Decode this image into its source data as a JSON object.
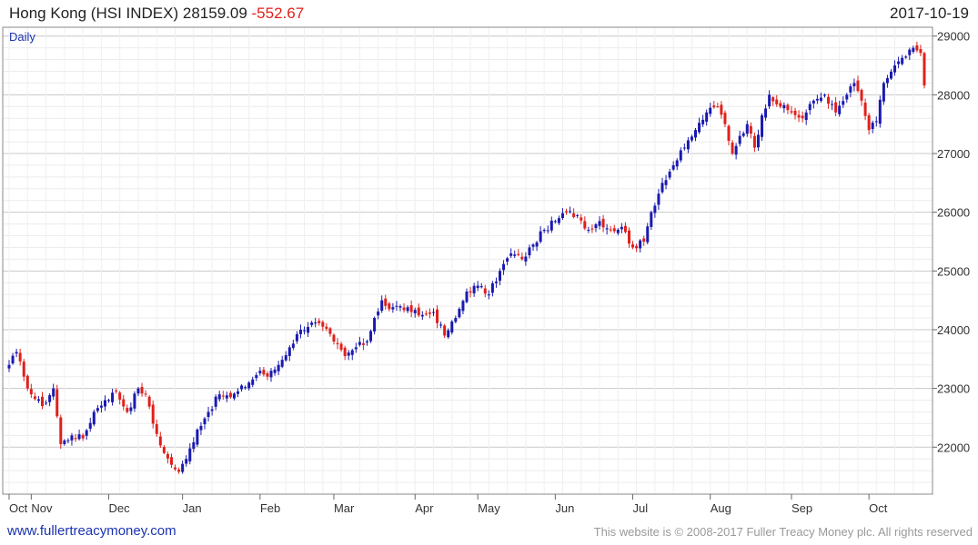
{
  "header": {
    "name": "Hong Kong (HSI INDEX)",
    "last": "28159.09",
    "change": "-552.67",
    "date": "2017-10-19"
  },
  "footer": {
    "site": "www.fullertreacymoney.com",
    "copyright": "This website is © 2008-2017 Fuller Treacy Money plc. All rights reserved"
  },
  "chart_data": {
    "type": "candlestick",
    "period": "Daily",
    "ylim": [
      21200,
      29150
    ],
    "y_ticks": [
      22000,
      23000,
      24000,
      25000,
      26000,
      27000,
      28000,
      29000
    ],
    "grid": true,
    "colors": {
      "up": "#1a1ab0",
      "down": "#e0201b"
    },
    "x_ticks": [
      {
        "label": "Oct",
        "index": 0
      },
      {
        "label": "Nov",
        "index": 6
      },
      {
        "label": "Dec",
        "index": 27
      },
      {
        "label": "Jan",
        "index": 47
      },
      {
        "label": "Feb",
        "index": 68
      },
      {
        "label": "Mar",
        "index": 88
      },
      {
        "label": "Apr",
        "index": 110
      },
      {
        "label": "May",
        "index": 127
      },
      {
        "label": "Jun",
        "index": 148
      },
      {
        "label": "Jul",
        "index": 169
      },
      {
        "label": "Aug",
        "index": 190
      },
      {
        "label": "Sep",
        "index": 212
      },
      {
        "label": "Oct",
        "index": 233
      }
    ],
    "close_path": [
      [
        0,
        23400
      ],
      [
        2,
        23620
      ],
      [
        4,
        23200
      ],
      [
        6,
        22900
      ],
      [
        9,
        22700
      ],
      [
        12,
        23000
      ],
      [
        14,
        22050
      ],
      [
        17,
        22200
      ],
      [
        20,
        22150
      ],
      [
        23,
        22600
      ],
      [
        26,
        22800
      ],
      [
        29,
        22950
      ],
      [
        32,
        22600
      ],
      [
        35,
        23000
      ],
      [
        37,
        22900
      ],
      [
        39,
        22400
      ],
      [
        42,
        21900
      ],
      [
        44,
        21700
      ],
      [
        46,
        21580
      ],
      [
        48,
        21800
      ],
      [
        51,
        22300
      ],
      [
        54,
        22600
      ],
      [
        57,
        22900
      ],
      [
        60,
        22850
      ],
      [
        62,
        22950
      ],
      [
        65,
        23100
      ],
      [
        68,
        23300
      ],
      [
        70,
        23200
      ],
      [
        73,
        23400
      ],
      [
        76,
        23700
      ],
      [
        79,
        24000
      ],
      [
        82,
        24120
      ],
      [
        85,
        24050
      ],
      [
        88,
        23800
      ],
      [
        91,
        23550
      ],
      [
        94,
        23700
      ],
      [
        97,
        23800
      ],
      [
        99,
        24200
      ],
      [
        101,
        24500
      ],
      [
        103,
        24350
      ],
      [
        106,
        24400
      ],
      [
        109,
        24300
      ],
      [
        112,
        24250
      ],
      [
        115,
        24300
      ],
      [
        118,
        23900
      ],
      [
        121,
        24200
      ],
      [
        124,
        24650
      ],
      [
        127,
        24750
      ],
      [
        130,
        24600
      ],
      [
        133,
        25000
      ],
      [
        136,
        25300
      ],
      [
        139,
        25200
      ],
      [
        142,
        25450
      ],
      [
        145,
        25700
      ],
      [
        148,
        25850
      ],
      [
        151,
        26000
      ],
      [
        154,
        25950
      ],
      [
        157,
        25700
      ],
      [
        160,
        25850
      ],
      [
        163,
        25700
      ],
      [
        166,
        25750
      ],
      [
        169,
        25400
      ],
      [
        172,
        25500
      ],
      [
        174,
        26000
      ],
      [
        177,
        26500
      ],
      [
        180,
        26800
      ],
      [
        183,
        27100
      ],
      [
        186,
        27400
      ],
      [
        189,
        27700
      ],
      [
        192,
        27800
      ],
      [
        194,
        27500
      ],
      [
        196,
        27000
      ],
      [
        198,
        27300
      ],
      [
        200,
        27500
      ],
      [
        202,
        27100
      ],
      [
        204,
        27650
      ],
      [
        206,
        28000
      ],
      [
        209,
        27800
      ],
      [
        212,
        27700
      ],
      [
        215,
        27600
      ],
      [
        218,
        27900
      ],
      [
        221,
        28000
      ],
      [
        224,
        27700
      ],
      [
        227,
        28000
      ],
      [
        229,
        28200
      ],
      [
        231,
        27900
      ],
      [
        233,
        27400
      ],
      [
        235,
        27550
      ],
      [
        237,
        28200
      ],
      [
        240,
        28500
      ],
      [
        243,
        28650
      ],
      [
        245,
        28800
      ],
      [
        247,
        28712
      ],
      [
        248,
        28159
      ]
    ],
    "last_close": 28159.09
  }
}
